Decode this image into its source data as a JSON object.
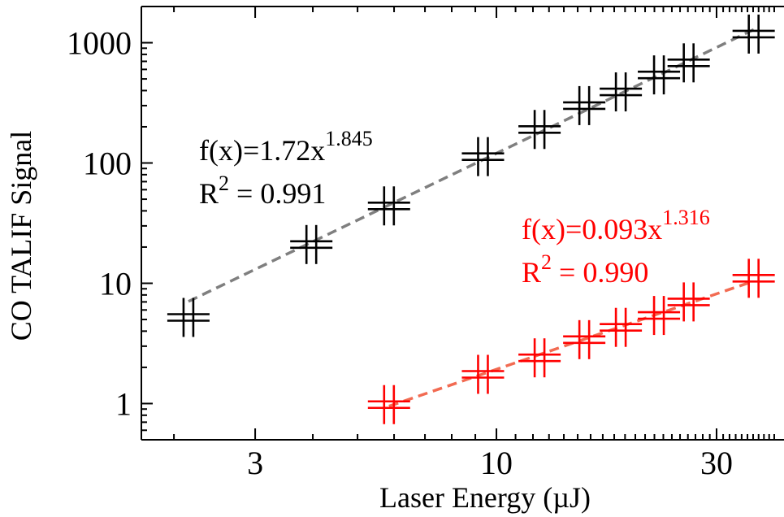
{
  "chart_data": {
    "type": "scatter",
    "xlabel": "Laser Energy (µJ)",
    "ylabel": "CO TALIF Signal",
    "xscale": "log",
    "yscale": "log",
    "xlim": [
      1.7,
      42
    ],
    "ylim": [
      0.5,
      2000
    ],
    "xticks": [
      3,
      10,
      30
    ],
    "xtick_labels": [
      "3",
      "10",
      "30"
    ],
    "yticks": [
      1,
      10,
      100,
      1000
    ],
    "ytick_labels": [
      "1",
      "10",
      "100",
      "1000"
    ],
    "grid": false,
    "series": [
      {
        "color": "#000000",
        "fit_color": "#7f7f7f",
        "x": [
          2.15,
          3.97,
          5.85,
          9.35,
          12.4,
          15.5,
          18.6,
          22.5,
          26.1,
          36.1
        ],
        "y": [
          5.2,
          21,
          44,
          113,
          190,
          300,
          390,
          540,
          680,
          1180
        ],
        "fit": {
          "prefix": "f(x)=1.72x",
          "exponent": "1.845",
          "r2_prefix": "R",
          "r2_sup": "2",
          "r2_value": " = 0.991",
          "a": 1.72,
          "b": 1.845,
          "x_range": [
            2.15,
            36.1
          ]
        }
      },
      {
        "color": "#ff0000",
        "fit_color": "#f26b52",
        "x": [
          5.85,
          9.35,
          12.4,
          15.5,
          18.6,
          22.5,
          26.1,
          36.1
        ],
        "y": [
          0.98,
          1.75,
          2.4,
          3.4,
          4.3,
          5.4,
          7.0,
          11.0
        ],
        "fit": {
          "prefix": "f(x)=0.093x",
          "exponent": "1.316",
          "r2_prefix": "R",
          "r2_sup": "2",
          "r2_value": " = 0.990",
          "a": 0.093,
          "b": 1.316,
          "x_range": [
            5.85,
            36.1
          ]
        }
      }
    ]
  }
}
